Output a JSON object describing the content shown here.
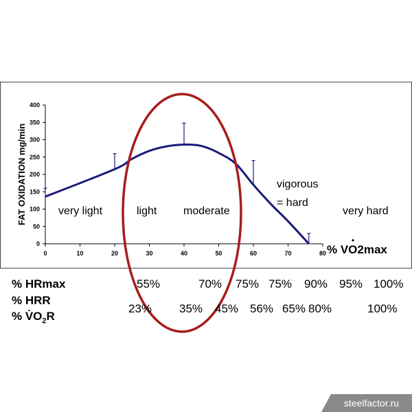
{
  "chart_data": {
    "type": "line",
    "ylabel": "FAT OXIDATION mg/min",
    "xlabel": "% VO2max",
    "xlim": [
      0,
      80
    ],
    "ylim": [
      0,
      400
    ],
    "x_ticks": [
      "0",
      "10",
      "20",
      "30",
      "40",
      "50",
      "60",
      "70",
      "80"
    ],
    "y_ticks": [
      "0",
      "50",
      "100",
      "150",
      "200",
      "250",
      "300",
      "350",
      "400"
    ],
    "grid": false,
    "series": [
      {
        "x": [
          0,
          20,
          25,
          30,
          35,
          40,
          45,
          50,
          55,
          60,
          65,
          70,
          76
        ],
        "values": [
          136,
          215,
          245,
          268,
          281,
          286,
          282,
          262,
          230,
          170,
          115,
          65,
          0
        ]
      }
    ],
    "error_bars": [
      {
        "x": 0,
        "y": 136,
        "top": 160
      },
      {
        "x": 20,
        "y": 215,
        "top": 260
      },
      {
        "x": 40,
        "y": 286,
        "top": 348
      },
      {
        "x": 60,
        "y": 170,
        "top": 240
      },
      {
        "x": 76,
        "y": 0,
        "top": 30
      }
    ],
    "zone_labels": [
      "very light",
      "light",
      "moderate",
      "vigorous",
      "= hard",
      "very hard"
    ],
    "series_color": "#1a1a7a",
    "ellipse_color": "#a81c1c"
  },
  "table": {
    "rows": [
      {
        "label": "% HRmax",
        "values": [
          "55%",
          "70%",
          "75%",
          "75%",
          "90%",
          "95%",
          "100%"
        ]
      },
      {
        "label": "% HRR",
        "values": []
      },
      {
        "label": "% VO2R",
        "values": [
          "23%",
          "35%",
          "45%",
          "56%",
          "65%",
          "80%",
          "100%"
        ]
      }
    ]
  },
  "watermark": "steelfactor.ru"
}
